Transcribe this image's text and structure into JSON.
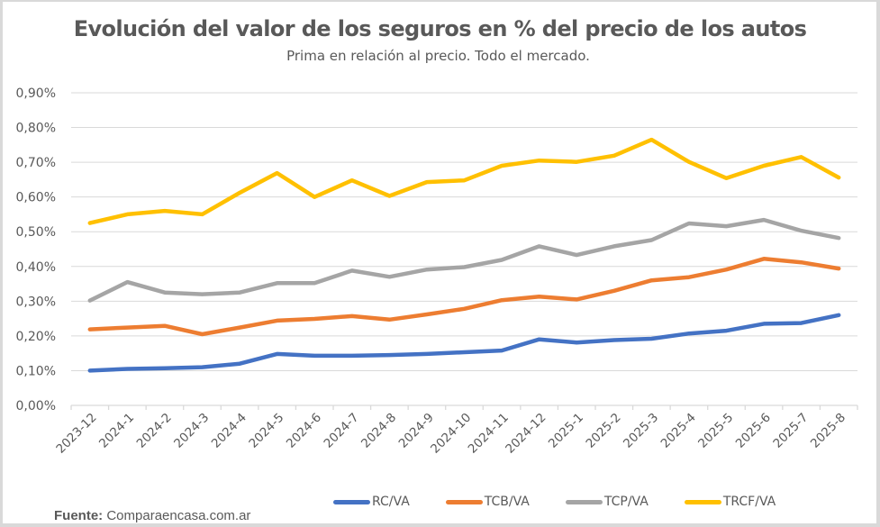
{
  "chart_data": {
    "type": "line",
    "title": "Evolución del valor de los seguros en % del precio de los autos",
    "subtitle": "Prima en relación al precio. Todo el mercado.",
    "xlabel": "",
    "ylabel": "",
    "ylim": [
      0,
      0.9
    ],
    "y_ticks": [
      0,
      0.1,
      0.2,
      0.3,
      0.4,
      0.5,
      0.6,
      0.7,
      0.8,
      0.9
    ],
    "y_tick_labels": [
      "0,00%",
      "0,10%",
      "0,20%",
      "0,30%",
      "0,40%",
      "0,50%",
      "0,60%",
      "0,70%",
      "0,80%",
      "0,90%"
    ],
    "y_unit": "percent",
    "grid": true,
    "legend_position": "bottom",
    "categories": [
      "2023-12",
      "2024-1",
      "2024-2",
      "2024-3",
      "2024-4",
      "2024-5",
      "2024-6",
      "2024-7",
      "2024-8",
      "2024-9",
      "2024-10",
      "2024-11",
      "2024-12",
      "2025-1",
      "2025-2",
      "2025-3",
      "2025-4",
      "2025-5",
      "2025-6",
      "2025-7",
      "2025-8"
    ],
    "series": [
      {
        "name": "RC/VA",
        "color": "#4472c4",
        "values": [
          0.1,
          0.105,
          0.107,
          0.11,
          0.12,
          0.148,
          0.143,
          0.143,
          0.145,
          0.148,
          0.153,
          0.158,
          0.19,
          0.181,
          0.188,
          0.192,
          0.207,
          0.215,
          0.235,
          0.237,
          0.26
        ]
      },
      {
        "name": "TCB/VA",
        "color": "#ed7d31",
        "values": [
          0.219,
          0.224,
          0.229,
          0.205,
          0.224,
          0.244,
          0.249,
          0.257,
          0.247,
          0.262,
          0.278,
          0.303,
          0.313,
          0.305,
          0.33,
          0.36,
          0.369,
          0.391,
          0.422,
          0.412,
          0.394
        ]
      },
      {
        "name": "TCP/VA",
        "color": "#a5a5a5",
        "values": [
          0.302,
          0.355,
          0.325,
          0.32,
          0.325,
          0.352,
          0.352,
          0.388,
          0.37,
          0.391,
          0.398,
          0.419,
          0.458,
          0.433,
          0.458,
          0.476,
          0.524,
          0.516,
          0.534,
          0.503,
          0.482
        ]
      },
      {
        "name": "TRCF/VA",
        "color": "#ffc000",
        "values": [
          0.525,
          0.55,
          0.56,
          0.55,
          0.612,
          0.669,
          0.6,
          0.648,
          0.603,
          0.643,
          0.648,
          0.69,
          0.705,
          0.701,
          0.719,
          0.765,
          0.701,
          0.654,
          0.69,
          0.715,
          0.656
        ]
      }
    ]
  },
  "footer": {
    "source_label": "Fuente:",
    "source_value": "Comparaencasa.com.ar"
  }
}
